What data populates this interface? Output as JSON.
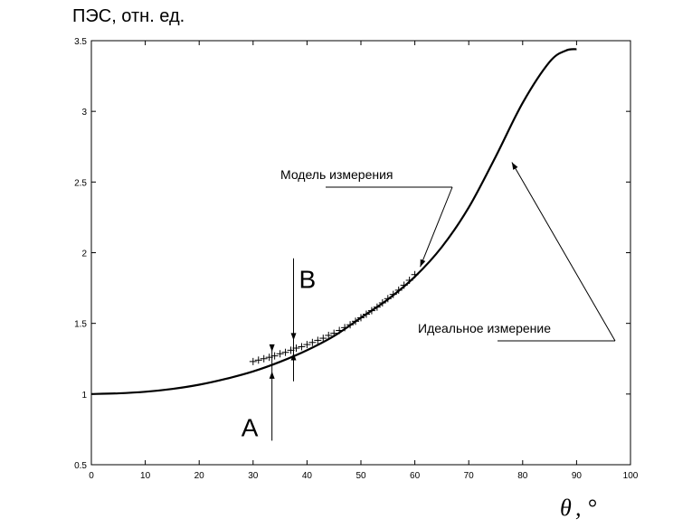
{
  "chart_data": {
    "type": "line",
    "ylabel": "ПЭС, отн. ед.",
    "xlabel_symbol": "θ",
    "xlabel_unit": ", °",
    "xlim": [
      0,
      100
    ],
    "ylim": [
      0.5,
      3.5
    ],
    "x_ticks": [
      0,
      10,
      20,
      30,
      40,
      50,
      60,
      70,
      80,
      90,
      100
    ],
    "y_ticks": [
      0.5,
      1,
      1.5,
      2,
      2.5,
      3,
      3.5
    ],
    "y_tick_labels": [
      "0.5",
      "1",
      "1.5",
      "2",
      "2.5",
      "3",
      "3.5"
    ],
    "grid": false,
    "series": [
      {
        "name": "Идеальное измерение",
        "style": "solid-line",
        "x": [
          0,
          5,
          10,
          15,
          20,
          25,
          30,
          35,
          40,
          45,
          50,
          55,
          60,
          65,
          70,
          75,
          80,
          85,
          88,
          90
        ],
        "y": [
          1.0,
          1.005,
          1.016,
          1.036,
          1.066,
          1.108,
          1.16,
          1.228,
          1.31,
          1.41,
          1.54,
          1.67,
          1.83,
          2.04,
          2.32,
          2.68,
          3.06,
          3.35,
          3.43,
          3.44
        ]
      },
      {
        "name": "Модель измерения",
        "style": "plus-markers",
        "x": [
          30,
          31,
          32,
          33,
          34,
          35,
          36,
          37,
          38,
          39,
          40,
          41,
          42,
          43,
          44,
          45,
          46,
          47,
          48,
          49,
          50,
          51,
          52,
          53,
          54,
          55,
          56,
          57,
          58,
          59,
          60
        ],
        "y": [
          1.23,
          1.24,
          1.25,
          1.26,
          1.27,
          1.285,
          1.295,
          1.31,
          1.325,
          1.335,
          1.35,
          1.365,
          1.38,
          1.395,
          1.415,
          1.43,
          1.45,
          1.47,
          1.49,
          1.515,
          1.54,
          1.565,
          1.59,
          1.615,
          1.645,
          1.675,
          1.705,
          1.735,
          1.77,
          1.805,
          1.845
        ]
      }
    ],
    "annotations": [
      {
        "text": "Модель измерения",
        "target_x": 61,
        "target_y": 1.9
      },
      {
        "text": "Идеальное измерение",
        "target_x": 78,
        "target_y": 2.64
      },
      {
        "text": "A",
        "x": 33.5,
        "y_low": 1.16,
        "y_high": 1.3
      },
      {
        "text": "B",
        "x": 37.5,
        "y_low": 1.29,
        "y_high": 1.38
      }
    ]
  }
}
